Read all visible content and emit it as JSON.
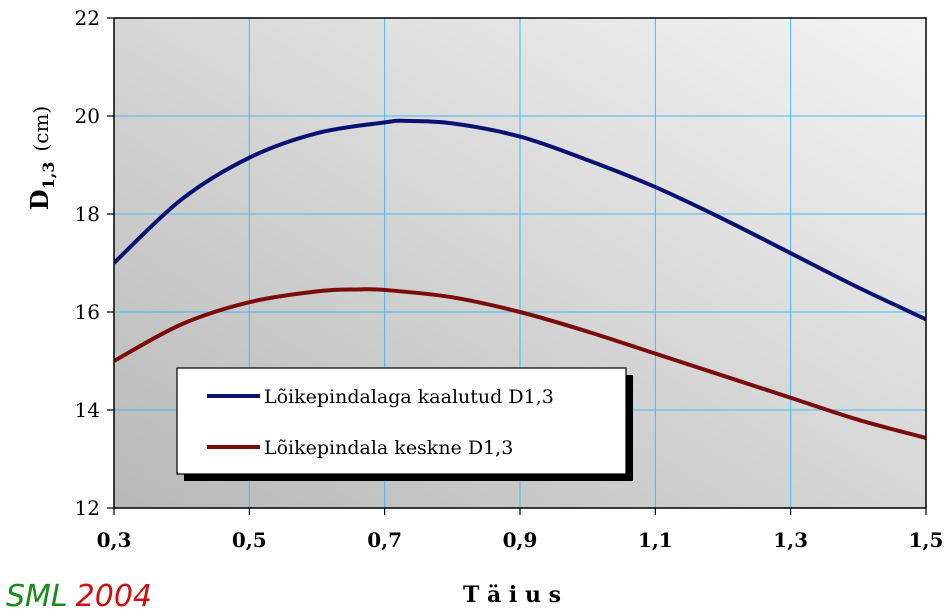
{
  "chart_data": {
    "type": "line",
    "title": "",
    "xlabel": "T ä i u s",
    "ylabel": {
      "main": "D",
      "sub": "1,3",
      "unit": "(cm)"
    },
    "xlim": [
      0.3,
      1.5
    ],
    "ylim": [
      12,
      22
    ],
    "x_ticks": [
      "0,3",
      "0,5",
      "0,7",
      "0,9",
      "1,1",
      "1,3",
      "1,5"
    ],
    "y_ticks": [
      "12",
      "14",
      "16",
      "18",
      "20",
      "22"
    ],
    "grid": true,
    "legend_position": "lower-left",
    "series": [
      {
        "name": "Lõikepindalaga kaalutud D1,3",
        "color": "#0a1172",
        "x": [
          0.3,
          0.4,
          0.5,
          0.6,
          0.7,
          0.73,
          0.8,
          0.9,
          1.0,
          1.1,
          1.2,
          1.3,
          1.4,
          1.5
        ],
        "y": [
          17.0,
          18.3,
          19.15,
          19.65,
          19.87,
          19.9,
          19.85,
          19.58,
          19.1,
          18.55,
          17.9,
          17.2,
          16.5,
          15.85
        ]
      },
      {
        "name": "Lõikepindala keskne D1,3",
        "color": "#7b0c0c",
        "x": [
          0.3,
          0.4,
          0.5,
          0.6,
          0.66,
          0.7,
          0.8,
          0.9,
          1.0,
          1.1,
          1.2,
          1.3,
          1.4,
          1.5
        ],
        "y": [
          15.0,
          15.75,
          16.2,
          16.42,
          16.46,
          16.45,
          16.3,
          16.0,
          15.6,
          15.15,
          14.7,
          14.25,
          13.8,
          13.43
        ]
      }
    ]
  },
  "watermark": {
    "part1": "SML",
    "part2": "2004",
    "color1": "#1a8a1a",
    "color2": "#d01010"
  },
  "colors": {
    "grid": "#44bbee",
    "plot_bg_light": "#f4f4f4",
    "plot_bg_dark": "#b8b8b8"
  }
}
